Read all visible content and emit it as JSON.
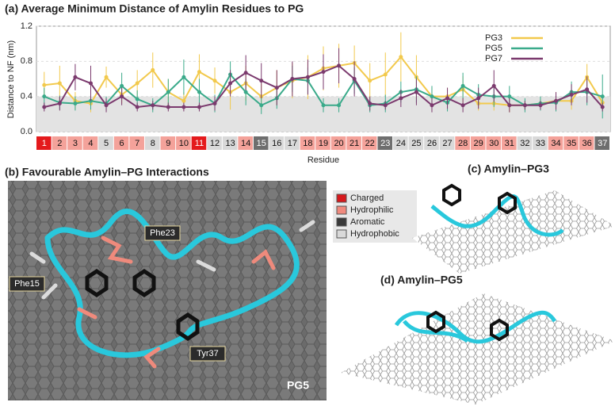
{
  "chart_data": {
    "type": "line",
    "title": "(a) Average Minimum Distance of Amylin Residues to PG",
    "x_label": "Residue",
    "y_label": "Distance to NF (nm)",
    "categories": [
      "1",
      "2",
      "3",
      "4",
      "5",
      "6",
      "7",
      "8",
      "9",
      "10",
      "11",
      "12",
      "13",
      "14",
      "15",
      "16",
      "17",
      "18",
      "19",
      "20",
      "21",
      "22",
      "23",
      "24",
      "25",
      "26",
      "27",
      "28",
      "29",
      "30",
      "31",
      "32",
      "33",
      "34",
      "35",
      "36",
      "37"
    ],
    "category_colors": [
      "#e41a1c",
      "#f4a29a",
      "#f4a29a",
      "#f4a29a",
      "#d9d9d9",
      "#f4a29a",
      "#f4a29a",
      "#d9d9d9",
      "#f4a29a",
      "#f4a29a",
      "#e41a1c",
      "#d9d9d9",
      "#d9d9d9",
      "#f4a29a",
      "#6e6e6e",
      "#d9d9d9",
      "#d9d9d9",
      "#f4a29a",
      "#f4a29a",
      "#f4a29a",
      "#f4a29a",
      "#f4a29a",
      "#6e6e6e",
      "#d9d9d9",
      "#d9d9d9",
      "#d9d9d9",
      "#d9d9d9",
      "#f4a29a",
      "#f4a29a",
      "#f4a29a",
      "#f4a29a",
      "#d9d9d9",
      "#d9d9d9",
      "#f4a29a",
      "#f4a29a",
      "#f4a29a",
      "#6e6e6e"
    ],
    "series": [
      {
        "name": "PG3",
        "color": "#f2c94c",
        "values": [
          0.53,
          0.55,
          0.35,
          0.32,
          0.62,
          0.42,
          0.55,
          0.7,
          0.45,
          0.35,
          0.68,
          0.58,
          0.45,
          0.55,
          0.4,
          0.5,
          0.58,
          0.62,
          0.72,
          0.75,
          0.78,
          0.58,
          0.65,
          0.85,
          0.62,
          0.4,
          0.4,
          0.48,
          0.32,
          0.32,
          0.3,
          0.3,
          0.32,
          0.35,
          0.35,
          0.62,
          0.33
        ],
        "errors": [
          0.15,
          0.2,
          0.1,
          0.1,
          0.12,
          0.1,
          0.15,
          0.2,
          0.15,
          0.1,
          0.2,
          0.15,
          0.2,
          0.2,
          0.15,
          0.2,
          0.2,
          0.25,
          0.25,
          0.25,
          0.2,
          0.2,
          0.25,
          0.28,
          0.25,
          0.1,
          0.1,
          0.15,
          0.08,
          0.08,
          0.08,
          0.05,
          0.05,
          0.1,
          0.1,
          0.15,
          0.08
        ]
      },
      {
        "name": "PG5",
        "color": "#3aaa8a",
        "values": [
          0.4,
          0.33,
          0.32,
          0.35,
          0.32,
          0.52,
          0.37,
          0.3,
          0.45,
          0.62,
          0.45,
          0.32,
          0.65,
          0.45,
          0.3,
          0.38,
          0.6,
          0.58,
          0.3,
          0.3,
          0.58,
          0.3,
          0.32,
          0.45,
          0.48,
          0.4,
          0.33,
          0.52,
          0.42,
          0.4,
          0.4,
          0.3,
          0.32,
          0.33,
          0.45,
          0.45,
          0.4
        ],
        "errors": [
          0.1,
          0.08,
          0.08,
          0.1,
          0.08,
          0.15,
          0.1,
          0.08,
          0.15,
          0.2,
          0.15,
          0.1,
          0.15,
          0.15,
          0.1,
          0.12,
          0.15,
          0.15,
          0.08,
          0.08,
          0.15,
          0.08,
          0.1,
          0.12,
          0.15,
          0.12,
          0.1,
          0.15,
          0.12,
          0.12,
          0.12,
          0.08,
          0.08,
          0.1,
          0.12,
          0.15,
          0.25
        ]
      },
      {
        "name": "PG7",
        "color": "#7b3a6e",
        "values": [
          0.28,
          0.32,
          0.62,
          0.55,
          0.3,
          0.4,
          0.28,
          0.3,
          0.28,
          0.28,
          0.28,
          0.32,
          0.55,
          0.67,
          0.58,
          0.5,
          0.6,
          0.62,
          0.68,
          0.75,
          0.6,
          0.32,
          0.3,
          0.38,
          0.45,
          0.3,
          0.38,
          0.3,
          0.38,
          0.52,
          0.3,
          0.3,
          0.3,
          0.35,
          0.42,
          0.48,
          0.28
        ],
        "errors": [
          0.05,
          0.08,
          0.15,
          0.2,
          0.08,
          0.1,
          0.05,
          0.05,
          0.05,
          0.05,
          0.05,
          0.08,
          0.15,
          0.2,
          0.2,
          0.2,
          0.2,
          0.2,
          0.2,
          0.2,
          0.2,
          0.08,
          0.05,
          0.1,
          0.15,
          0.08,
          0.12,
          0.08,
          0.12,
          0.18,
          0.08,
          0.05,
          0.05,
          0.1,
          0.12,
          0.15,
          0.05
        ]
      }
    ],
    "ylim": [
      0,
      1.2
    ],
    "yticks": [
      {
        "value": 0,
        "label": "0.0"
      },
      0.4,
      0.8,
      1.2
    ],
    "shaded_region": [
      0,
      0.4
    ],
    "grid": true,
    "legend": "upper right"
  },
  "panel_b": {
    "title": "(b) Favourable Amylin–PG Interactions",
    "labels": [
      "Phe23",
      "Phe15",
      "Tyr37"
    ],
    "surface": "PG5",
    "legend": [
      {
        "name": "Charged",
        "color": "#d7191c"
      },
      {
        "name": "Hydrophilic",
        "color": "#f08a7e"
      },
      {
        "name": "Aromatic",
        "color": "#3a3a3a"
      },
      {
        "name": "Hydrophobic",
        "color": "#d9d9d9"
      }
    ]
  },
  "panel_c": {
    "title": "(c) Amylin–PG3"
  },
  "panel_d": {
    "title": "(d) Amylin–PG5"
  }
}
